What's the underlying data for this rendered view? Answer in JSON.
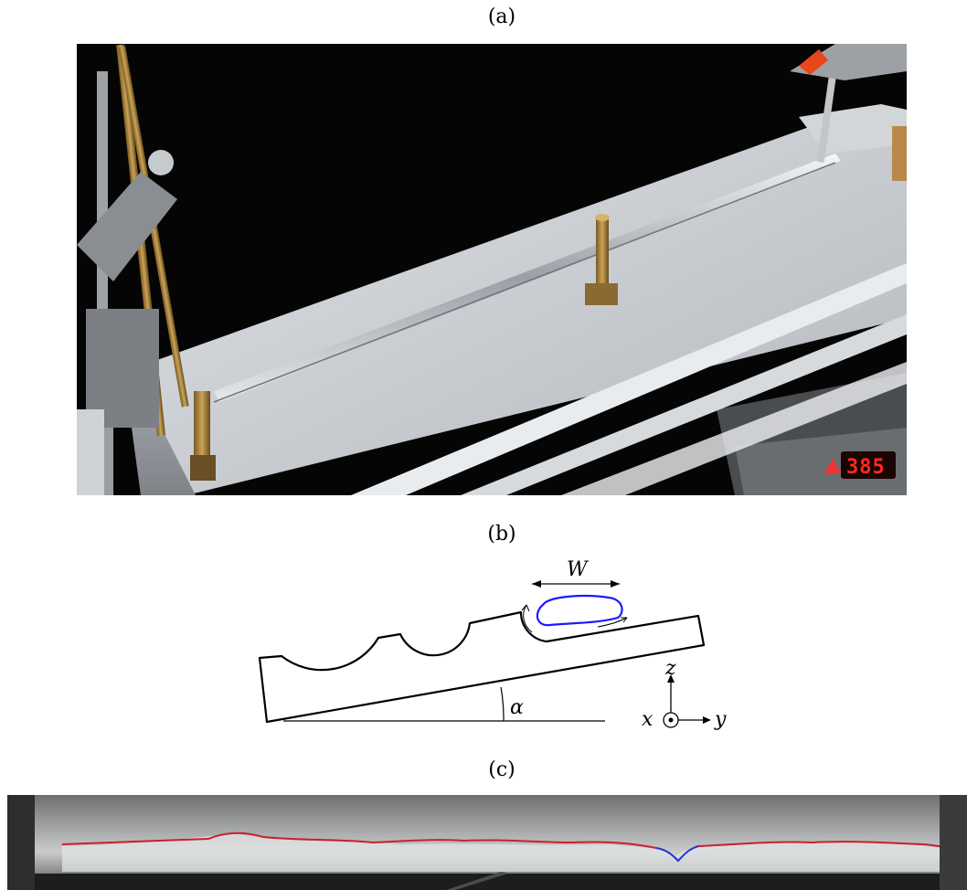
{
  "figure": {
    "panels": [
      {
        "id": "a",
        "label": "(a)"
      },
      {
        "id": "b",
        "label": "(b)"
      },
      {
        "id": "c",
        "label": "(c)"
      }
    ]
  },
  "photo_a": {
    "display_readout": "385"
  },
  "diagram_b": {
    "width_symbol": "W",
    "angle_symbol": "α",
    "axis_z": "z",
    "axis_x": "x",
    "axis_y": "y",
    "colors": {
      "outline": "#000000",
      "rivulet": "#1a1aff"
    }
  },
  "photo_c": {
    "colors": {
      "profile_red": "#cc1f2e",
      "profile_blue": "#2233cc"
    }
  }
}
